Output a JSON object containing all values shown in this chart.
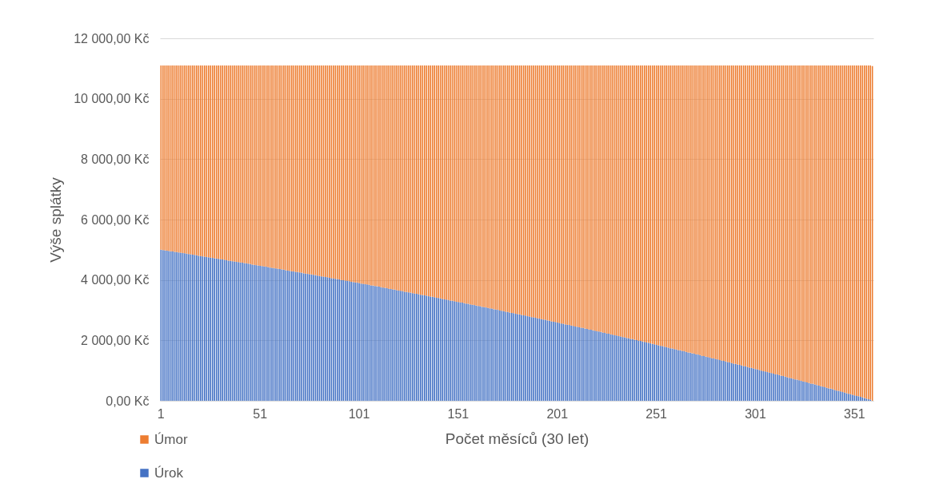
{
  "chart_data": {
    "type": "bar",
    "stacked": true,
    "xlabel": "Počet měsíců (30 let)",
    "ylabel": "Výše splátky",
    "categories": [
      "1",
      null,
      null,
      null,
      null,
      null,
      null,
      null,
      null,
      null,
      null,
      null,
      null,
      null,
      null,
      null,
      null,
      null,
      null,
      null,
      null,
      null,
      null,
      null,
      null,
      null,
      null,
      null,
      null,
      null,
      null,
      null,
      null,
      null,
      null,
      null,
      null,
      null,
      null,
      null,
      null,
      null,
      null,
      null,
      null,
      null,
      null,
      null,
      null,
      null,
      "51",
      null,
      null,
      null,
      null,
      null,
      null,
      null,
      null,
      null,
      null,
      null,
      null,
      null,
      null,
      null,
      null,
      null,
      null,
      null,
      null,
      null,
      null,
      null,
      null,
      null,
      null,
      null,
      null,
      null,
      null,
      null,
      null,
      null,
      null,
      null,
      null,
      null,
      null,
      null,
      null,
      null,
      null,
      null,
      null,
      null,
      null,
      null,
      null,
      null,
      "101",
      null,
      null,
      null,
      null,
      null,
      null,
      null,
      null,
      null,
      null,
      null,
      null,
      null,
      null,
      null,
      null,
      null,
      null,
      null,
      null,
      null,
      null,
      null,
      null,
      null,
      null,
      null,
      null,
      null,
      null,
      null,
      null,
      null,
      null,
      null,
      null,
      null,
      null,
      null,
      null,
      null,
      null,
      null,
      null,
      null,
      null,
      null,
      null,
      null,
      "151",
      null,
      null,
      null,
      null,
      null,
      null,
      null,
      null,
      null,
      null,
      null,
      null,
      null,
      null,
      null,
      null,
      null,
      null,
      null,
      null,
      null,
      null,
      null,
      null,
      null,
      null,
      null,
      null,
      null,
      null,
      null,
      null,
      null,
      null,
      null,
      null,
      null,
      null,
      null,
      null,
      null,
      null,
      null,
      null,
      null,
      null,
      null,
      null,
      null,
      "201",
      null,
      null,
      null,
      null,
      null,
      null,
      null,
      null,
      null,
      null,
      null,
      null,
      null,
      null,
      null,
      null,
      null,
      null,
      null,
      null,
      null,
      null,
      null,
      null,
      null,
      null,
      null,
      null,
      null,
      null,
      null,
      null,
      null,
      null,
      null,
      null,
      null,
      null,
      null,
      null,
      null,
      null,
      null,
      null,
      null,
      null,
      null,
      null,
      null,
      "251",
      null,
      null,
      null,
      null,
      null,
      null,
      null,
      null,
      null,
      null,
      null,
      null,
      null,
      null,
      null,
      null,
      null,
      null,
      null,
      null,
      null,
      null,
      null,
      null,
      null,
      null,
      null,
      null,
      null,
      null,
      null,
      null,
      null,
      null,
      null,
      null,
      null,
      null,
      null,
      null,
      null,
      null,
      null,
      null,
      null,
      null,
      null,
      null,
      null,
      "301",
      null,
      null,
      null,
      null,
      null,
      null,
      null,
      null,
      null,
      null,
      null,
      null,
      null,
      null,
      null,
      null,
      null,
      null,
      null,
      null,
      null,
      null,
      null,
      null,
      null,
      null,
      null,
      null,
      null,
      null,
      null,
      null,
      null,
      null,
      null,
      null,
      null,
      null,
      null,
      null,
      null,
      null,
      null,
      null,
      null,
      null,
      null,
      null,
      null,
      "351",
      null,
      null,
      null,
      null,
      null,
      null,
      null,
      null,
      null
    ],
    "series": [
      {
        "name": "Úrok",
        "color": "#4472c4",
        "values": [
          5000,
          4990,
          4980,
          4970,
          4960,
          4950,
          4940,
          4930,
          4920,
          4910,
          4900,
          4890,
          4880,
          4870,
          4860,
          4850,
          4840,
          4830,
          4820,
          4800,
          4790,
          4780,
          4770,
          4760,
          4750,
          4740,
          4730,
          4720,
          4710,
          4700,
          4690,
          4680,
          4670,
          4650,
          4640,
          4630,
          4620,
          4610,
          4600,
          4590,
          4580,
          4570,
          4560,
          4550,
          4540,
          4530,
          4510,
          4500,
          4490,
          4480,
          4470,
          4460,
          4450,
          4440,
          4430,
          4410,
          4400,
          4390,
          4380,
          4370,
          4360,
          4350,
          4340,
          4320,
          4310,
          4300,
          4290,
          4280,
          4270,
          4260,
          4250,
          4240,
          4220,
          4210,
          4200,
          4190,
          4180,
          4170,
          4160,
          4140,
          4130,
          4120,
          4110,
          4100,
          4090,
          4070,
          4060,
          4050,
          4040,
          4030,
          4020,
          4000,
          3990,
          3980,
          3970,
          3960,
          3940,
          3930,
          3920,
          3910,
          3900,
          3880,
          3870,
          3860,
          3850,
          3840,
          3820,
          3810,
          3800,
          3790,
          3780,
          3760,
          3750,
          3740,
          3730,
          3710,
          3700,
          3690,
          3680,
          3660,
          3650,
          3640,
          3630,
          3610,
          3600,
          3590,
          3580,
          3560,
          3550,
          3540,
          3530,
          3510,
          3500,
          3490,
          3480,
          3460,
          3450,
          3440,
          3430,
          3410,
          3400,
          3390,
          3370,
          3360,
          3350,
          3340,
          3320,
          3310,
          3300,
          3280,
          3270,
          3260,
          3250,
          3230,
          3220,
          3210,
          3190,
          3180,
          3170,
          3150,
          3140,
          3130,
          3110,
          3100,
          3090,
          3070,
          3060,
          3050,
          3030,
          3020,
          3010,
          2990,
          2980,
          2970,
          2950,
          2940,
          2920,
          2910,
          2900,
          2880,
          2870,
          2860,
          2840,
          2830,
          2820,
          2800,
          2790,
          2770,
          2760,
          2750,
          2730,
          2720,
          2700,
          2690,
          2680,
          2660,
          2650,
          2630,
          2620,
          2610,
          2590,
          2580,
          2560,
          2550,
          2530,
          2520,
          2510,
          2490,
          2480,
          2460,
          2450,
          2430,
          2420,
          2410,
          2390,
          2380,
          2360,
          2350,
          2330,
          2320,
          2300,
          2290,
          2280,
          2260,
          2250,
          2230,
          2220,
          2200,
          2190,
          2170,
          2160,
          2140,
          2130,
          2110,
          2100,
          2080,
          2070,
          2050,
          2040,
          2020,
          2010,
          1990,
          1980,
          1960,
          1950,
          1930,
          1920,
          1900,
          1880,
          1870,
          1850,
          1840,
          1820,
          1810,
          1790,
          1780,
          1760,
          1740,
          1730,
          1710,
          1700,
          1680,
          1670,
          1650,
          1640,
          1620,
          1600,
          1590,
          1570,
          1560,
          1540,
          1530,
          1510,
          1490,
          1480,
          1460,
          1450,
          1430,
          1410,
          1400,
          1380,
          1370,
          1350,
          1330,
          1320,
          1300,
          1280,
          1270,
          1250,
          1230,
          1220,
          1200,
          1190,
          1170,
          1150,
          1140,
          1120,
          1100,
          1090,
          1070,
          1050,
          1040,
          1020,
          1000,
          980,
          970,
          950,
          930,
          920,
          900,
          880,
          870,
          850,
          830,
          820,
          800,
          780,
          760,
          750,
          730,
          710,
          700,
          680,
          660,
          640,
          630,
          610,
          590,
          570,
          560,
          540,
          520,
          500,
          480,
          470,
          450,
          430,
          410,
          400,
          380,
          360,
          340,
          330,
          310,
          290,
          270,
          250,
          230,
          220,
          200,
          180,
          160,
          150,
          130,
          110,
          90,
          70,
          50,
          40,
          null
        ]
      },
      {
        "name": "Úmor",
        "color": "#ed7d31",
        "values": [
          6100,
          6110,
          6120,
          6130,
          6140,
          6150,
          6160,
          6170,
          6180,
          6190,
          6200,
          6210,
          6220,
          6230,
          6240,
          6250,
          6260,
          6270,
          6280,
          6300,
          6310,
          6320,
          6330,
          6340,
          6350,
          6360,
          6370,
          6380,
          6390,
          6400,
          6410,
          6420,
          6430,
          6450,
          6460,
          6470,
          6480,
          6490,
          6500,
          6510,
          6520,
          6530,
          6540,
          6550,
          6560,
          6570,
          6590,
          6600,
          6610,
          6620,
          6630,
          6640,
          6650,
          6660,
          6670,
          6690,
          6700,
          6710,
          6720,
          6730,
          6740,
          6750,
          6760,
          6780,
          6790,
          6800,
          6810,
          6820,
          6830,
          6840,
          6850,
          6860,
          6880,
          6890,
          6900,
          6910,
          6920,
          6930,
          6940,
          6960,
          6970,
          6980,
          6990,
          7000,
          7010,
          7030,
          7040,
          7050,
          7060,
          7070,
          7080,
          7100,
          7110,
          7120,
          7130,
          7140,
          7160,
          7170,
          7180,
          7190,
          7200,
          7220,
          7230,
          7240,
          7250,
          7260,
          7280,
          7290,
          7300,
          7310,
          7320,
          7340,
          7350,
          7360,
          7370,
          7390,
          7400,
          7410,
          7420,
          7440,
          7450,
          7460,
          7470,
          7490,
          7500,
          7510,
          7520,
          7540,
          7550,
          7560,
          7570,
          7590,
          7600,
          7610,
          7620,
          7640,
          7650,
          7660,
          7670,
          7690,
          7700,
          7710,
          7730,
          7740,
          7750,
          7760,
          7780,
          7790,
          7800,
          7820,
          7830,
          7840,
          7850,
          7870,
          7880,
          7890,
          7910,
          7920,
          7930,
          7950,
          7960,
          7970,
          7990,
          8000,
          8010,
          8030,
          8040,
          8050,
          8070,
          8080,
          8090,
          8110,
          8120,
          8130,
          8150,
          8160,
          8180,
          8190,
          8200,
          8220,
          8230,
          8240,
          8260,
          8270,
          8280,
          8300,
          8310,
          8330,
          8340,
          8350,
          8370,
          8380,
          8400,
          8410,
          8420,
          8440,
          8450,
          8470,
          8480,
          8490,
          8510,
          8520,
          8540,
          8550,
          8570,
          8580,
          8590,
          8610,
          8620,
          8640,
          8650,
          8670,
          8680,
          8690,
          8710,
          8720,
          8740,
          8750,
          8770,
          8780,
          8800,
          8810,
          8820,
          8840,
          8850,
          8870,
          8880,
          8900,
          8910,
          8930,
          8940,
          8960,
          8970,
          8990,
          9000,
          9020,
          9030,
          9050,
          9060,
          9080,
          9090,
          9110,
          9120,
          9140,
          9150,
          9170,
          9180,
          9200,
          9220,
          9230,
          9250,
          9260,
          9280,
          9290,
          9310,
          9320,
          9340,
          9360,
          9370,
          9390,
          9400,
          9420,
          9430,
          9450,
          9460,
          9480,
          9500,
          9510,
          9530,
          9540,
          9560,
          9570,
          9590,
          9610,
          9620,
          9640,
          9650,
          9670,
          9690,
          9700,
          9720,
          9730,
          9750,
          9770,
          9780,
          9800,
          9820,
          9830,
          9850,
          9870,
          9880,
          9900,
          9910,
          9930,
          9950,
          9960,
          9980,
          10000,
          10010,
          10030,
          10050,
          10060,
          10080,
          10100,
          10120,
          10130,
          10150,
          10170,
          10180,
          10200,
          10220,
          10230,
          10250,
          10270,
          10280,
          10300,
          10320,
          10340,
          10350,
          10370,
          10390,
          10400,
          10420,
          10440,
          10460,
          10470,
          10490,
          10510,
          10530,
          10540,
          10560,
          10580,
          10600,
          10620,
          10630,
          10650,
          10670,
          10690,
          10700,
          10720,
          10740,
          10760,
          10770,
          10790,
          10810,
          10830,
          10850,
          10870,
          10880,
          10900,
          10920,
          10940,
          10950,
          10970,
          10990,
          11010,
          11030,
          11050,
          11060,
          11080
        ]
      }
    ],
    "ylim": [
      0,
      12000
    ],
    "yticks": [
      {
        "value": 0,
        "label": "0,00 Kč"
      },
      {
        "value": 2000,
        "label": "2 000,00 Kč"
      },
      {
        "value": 4000,
        "label": "4 000,00 Kč"
      },
      {
        "value": 6000,
        "label": "6 000,00 Kč"
      },
      {
        "value": 8000,
        "label": "8 000,00 Kč"
      },
      {
        "value": 10000,
        "label": "10 000,00 Kč"
      },
      {
        "value": 12000,
        "label": "12 000,00 Kč"
      }
    ],
    "grid": "y",
    "legend": "bottom left"
  }
}
